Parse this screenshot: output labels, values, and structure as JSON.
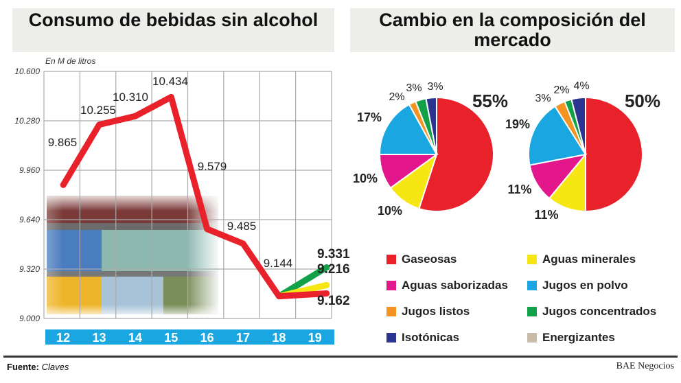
{
  "chart_data": [
    {
      "type": "line",
      "title": "Consumo de bebidas sin alcohol",
      "ylabel": "En M de litros",
      "ylim": [
        9000,
        10600
      ],
      "yticks": [
        "10.600",
        "10.280",
        "9.960",
        "9.640",
        "9.320",
        "9.000"
      ],
      "ytick_values": [
        10600,
        10280,
        9960,
        9640,
        9320,
        9000
      ],
      "categories": [
        "12",
        "13",
        "14",
        "15",
        "16",
        "17",
        "18",
        "19"
      ],
      "grid": true,
      "series": [
        {
          "color": "#e8212a",
          "values": [
            9865,
            10255,
            10310,
            10434,
            9579,
            9485,
            9144,
            9162
          ],
          "labels": [
            "9.865",
            "10.255",
            "10.310",
            "10.434",
            "9.579",
            "9.485",
            "9.144",
            "9.162"
          ]
        },
        {
          "color": "#f5e614",
          "values": [
            null,
            null,
            null,
            null,
            null,
            null,
            9144,
            9216
          ],
          "labels": [
            null,
            null,
            null,
            null,
            null,
            null,
            null,
            "9.216"
          ]
        },
        {
          "color": "#12a048",
          "values": [
            null,
            null,
            null,
            null,
            null,
            null,
            9144,
            9331
          ],
          "labels": [
            null,
            null,
            null,
            null,
            null,
            null,
            null,
            "9.331"
          ]
        }
      ],
      "axis_bar_color": "#1aa7e1"
    },
    {
      "type": "pie",
      "title": "Cambio en la composición del mercado",
      "categories": [
        "Gaseosas",
        "Aguas minerales",
        "Aguas saborizadas",
        "Jugos en polvo",
        "Jugos listos",
        "Jugos concentrados",
        "Isotónicas",
        "Energizantes"
      ],
      "colors": [
        "#e8212a",
        "#f5e614",
        "#e3168c",
        "#1aa7e1",
        "#f39322",
        "#12a048",
        "#2b3590",
        "#c8bca8"
      ],
      "pies": [
        {
          "values": [
            55,
            10,
            10,
            17,
            2,
            3,
            3,
            0
          ],
          "labels": [
            "55%",
            "10%",
            "10%",
            "17%",
            "2%",
            "3%",
            "3%",
            null
          ]
        },
        {
          "values": [
            50,
            11,
            11,
            19,
            3,
            2,
            4,
            0
          ],
          "labels": [
            "50%",
            "11%",
            "11%",
            "19%",
            "3%",
            "2%",
            "4%",
            null
          ]
        }
      ],
      "legend_placement": "bottom"
    }
  ],
  "titles": {
    "left": "Consumo de bebidas sin alcohol",
    "right": "Cambio en la composición del mercado"
  },
  "unit_label": "En M de litros",
  "footer": {
    "source_label": "Fuente:",
    "source_value": "Claves",
    "brand": "BAE Negocios"
  }
}
